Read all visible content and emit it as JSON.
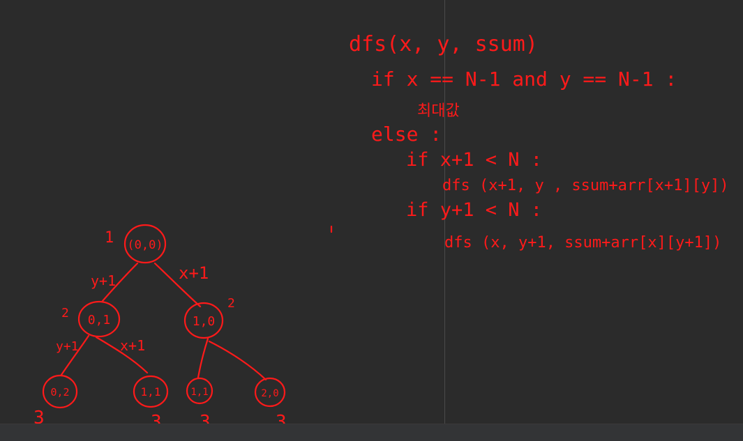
{
  "code": {
    "line1": "dfs(x, y, ssum)",
    "line2": "if x == N-1 and y == N-1 :",
    "line3": "최대값",
    "line4": "else :",
    "line5": "if x+1 < N :",
    "line6": "dfs (x+1, y , ssum+arr[x+1][y])",
    "line7": "if y+1 < N :",
    "line8": "dfs (x, y+1, ssum+arr[x][y+1])"
  },
  "tree": {
    "root": {
      "label": "(0,0)",
      "depth": "1"
    },
    "left": {
      "label": "0,1",
      "depth": "2",
      "edge": "y+1"
    },
    "right": {
      "label": "1,0",
      "depth": "2",
      "edge": "x+1"
    },
    "ll": {
      "label": "0,2",
      "depth": "3",
      "edge": "y+1"
    },
    "lr": {
      "label": "1,1",
      "depth": "3",
      "edge": "x+1"
    },
    "rl": {
      "label": "1,1",
      "depth": "3"
    },
    "rr": {
      "label": "2,0",
      "depth": "3"
    }
  },
  "colors": {
    "background": "#2b2b2b",
    "ink": "#ff1a1a",
    "divider": "#4a4a4a"
  }
}
